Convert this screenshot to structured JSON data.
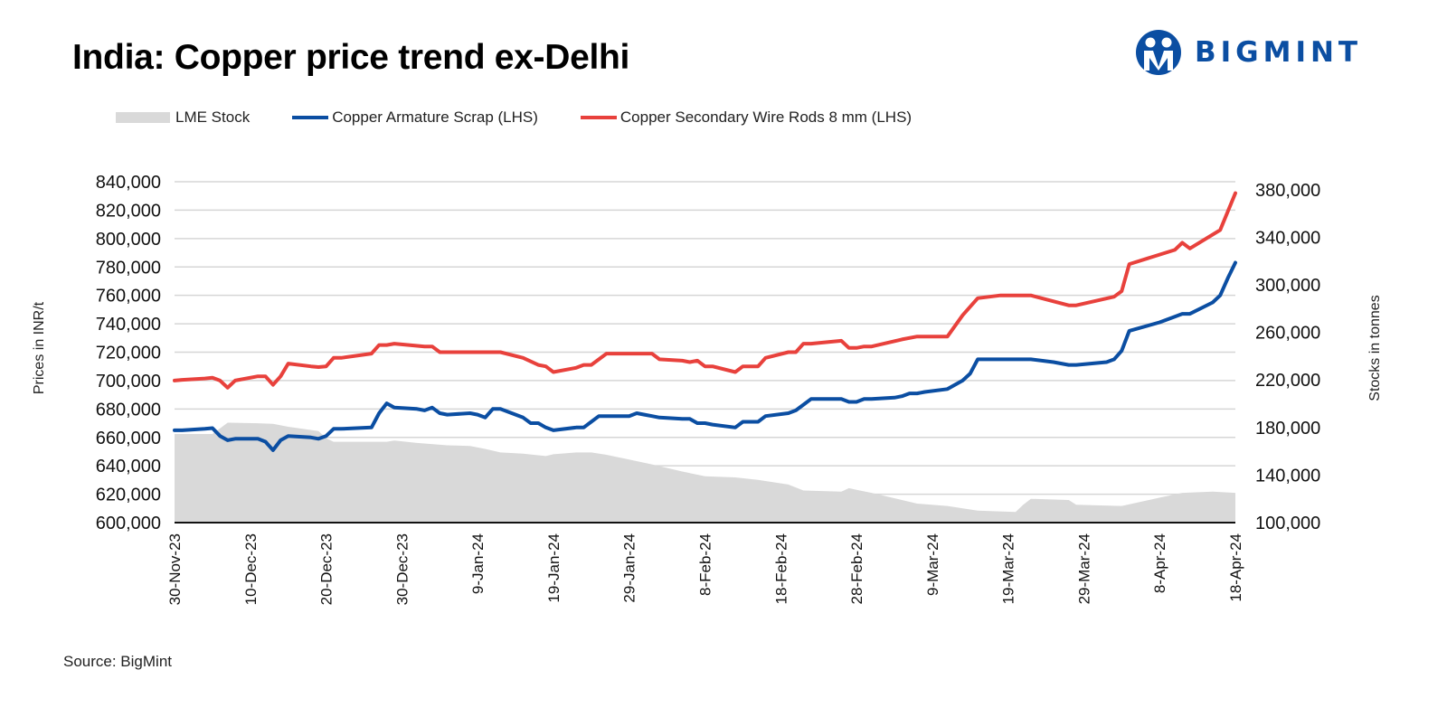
{
  "header": {
    "title": "India: Copper price trend ex-Delhi",
    "logo_text": "BIGMINT"
  },
  "footer": {
    "source": "Source: BigMint"
  },
  "colors": {
    "lme": "#d9d9d9",
    "armature": "#0b4ea2",
    "wire_rods": "#e8413c",
    "brand": "#0b4ea2"
  },
  "chart_data": {
    "type": "line",
    "title": "India: Copper price trend ex-Delhi",
    "ylabel": "Prices in INR/t",
    "y2label": "Stocks in tonnes",
    "ylim": [
      600000,
      840000
    ],
    "y2lim": [
      100000,
      386667
    ],
    "grid": true,
    "legend": "top-left",
    "yticks": [
      "600,000",
      "620,000",
      "640,000",
      "660,000",
      "680,000",
      "700,000",
      "720,000",
      "740,000",
      "760,000",
      "780,000",
      "800,000",
      "820,000",
      "840,000"
    ],
    "y2ticks": [
      "100,000",
      "140,000",
      "180,000",
      "220,000",
      "260,000",
      "300,000",
      "340,000",
      "380,000"
    ],
    "xticks": [
      "30-Nov-23",
      "10-Dec-23",
      "20-Dec-23",
      "30-Dec-23",
      "9-Jan-24",
      "19-Jan-24",
      "29-Jan-24",
      "8-Feb-24",
      "18-Feb-24",
      "28-Feb-24",
      "9-Mar-24",
      "19-Mar-24",
      "29-Mar-24",
      "8-Apr-24",
      "18-Apr-24"
    ],
    "series": [
      {
        "name": "LME Stock",
        "type": "area",
        "axis": "right",
        "points": [
          [
            "30-Nov-23",
            174500
          ],
          [
            "5-Dec-23",
            174500
          ],
          [
            "7-Dec-23",
            184000
          ],
          [
            "11-Dec-23",
            183600
          ],
          [
            "13-Dec-23",
            183000
          ],
          [
            "15-Dec-23",
            180600
          ],
          [
            "19-Dec-23",
            177000
          ],
          [
            "20-Dec-23",
            171000
          ],
          [
            "21-Dec-23",
            168000
          ],
          [
            "28-Dec-23",
            168000
          ],
          [
            "29-Dec-23",
            169000
          ],
          [
            "1-Jan-24",
            167000
          ],
          [
            "5-Jan-24",
            165000
          ],
          [
            "8-Jan-24",
            164500
          ],
          [
            "10-Jan-24",
            162000
          ],
          [
            "12-Jan-24",
            159000
          ],
          [
            "15-Jan-24",
            158000
          ],
          [
            "18-Jan-24",
            156000
          ],
          [
            "19-Jan-24",
            157500
          ],
          [
            "22-Jan-24",
            159000
          ],
          [
            "24-Jan-24",
            159000
          ],
          [
            "26-Jan-24",
            157000
          ],
          [
            "29-Jan-24",
            153000
          ],
          [
            "1-Feb-24",
            149000
          ],
          [
            "5-Feb-24",
            143000
          ],
          [
            "8-Feb-24",
            139000
          ],
          [
            "12-Feb-24",
            138000
          ],
          [
            "15-Feb-24",
            136000
          ],
          [
            "19-Feb-24",
            132000
          ],
          [
            "21-Feb-24",
            127000
          ],
          [
            "26-Feb-24",
            126000
          ],
          [
            "27-Feb-24",
            129000
          ],
          [
            "28-Feb-24",
            127500
          ],
          [
            "1-Mar-24",
            125000
          ],
          [
            "5-Mar-24",
            119000
          ],
          [
            "7-Mar-24",
            116000
          ],
          [
            "11-Mar-24",
            114000
          ],
          [
            "14-Mar-24",
            111000
          ],
          [
            "15-Mar-24",
            110000
          ],
          [
            "20-Mar-24",
            109000
          ],
          [
            "21-Mar-24",
            115000
          ],
          [
            "22-Mar-24",
            120000
          ],
          [
            "27-Mar-24",
            119000
          ],
          [
            "28-Mar-24",
            115000
          ],
          [
            "3-Apr-24",
            114000
          ],
          [
            "8-Apr-24",
            121000
          ],
          [
            "11-Apr-24",
            125000
          ],
          [
            "15-Apr-24",
            126000
          ],
          [
            "18-Apr-24",
            125000
          ]
        ]
      },
      {
        "name": "Copper Armature Scrap (LHS)",
        "type": "line",
        "axis": "left",
        "points": [
          [
            "30-Nov-23",
            665000
          ],
          [
            "1-Dec-23",
            665000
          ],
          [
            "4-Dec-23",
            666000
          ],
          [
            "5-Dec-23",
            666500
          ],
          [
            "6-Dec-23",
            661000
          ],
          [
            "7-Dec-23",
            658000
          ],
          [
            "8-Dec-23",
            659000
          ],
          [
            "11-Dec-23",
            659000
          ],
          [
            "12-Dec-23",
            657000
          ],
          [
            "13-Dec-23",
            651000
          ],
          [
            "14-Dec-23",
            658000
          ],
          [
            "15-Dec-23",
            661000
          ],
          [
            "18-Dec-23",
            660000
          ],
          [
            "19-Dec-23",
            659000
          ],
          [
            "20-Dec-23",
            661000
          ],
          [
            "21-Dec-23",
            666000
          ],
          [
            "22-Dec-23",
            666000
          ],
          [
            "26-Dec-23",
            667000
          ],
          [
            "27-Dec-23",
            677000
          ],
          [
            "28-Dec-23",
            684000
          ],
          [
            "29-Dec-23",
            681000
          ],
          [
            "1-Jan-24",
            680000
          ],
          [
            "2-Jan-24",
            679000
          ],
          [
            "3-Jan-24",
            681000
          ],
          [
            "4-Jan-24",
            677000
          ],
          [
            "5-Jan-24",
            676000
          ],
          [
            "8-Jan-24",
            677000
          ],
          [
            "9-Jan-24",
            676000
          ],
          [
            "10-Jan-24",
            674000
          ],
          [
            "11-Jan-24",
            680000
          ],
          [
            "12-Jan-24",
            680000
          ],
          [
            "15-Jan-24",
            674000
          ],
          [
            "16-Jan-24",
            670000
          ],
          [
            "17-Jan-24",
            670000
          ],
          [
            "18-Jan-24",
            667000
          ],
          [
            "19-Jan-24",
            665000
          ],
          [
            "22-Jan-24",
            667000
          ],
          [
            "23-Jan-24",
            667000
          ],
          [
            "24-Jan-24",
            671000
          ],
          [
            "25-Jan-24",
            675000
          ],
          [
            "26-Jan-24",
            675000
          ],
          [
            "29-Jan-24",
            675000
          ],
          [
            "30-Jan-24",
            677000
          ],
          [
            "31-Jan-24",
            676000
          ],
          [
            "1-Feb-24",
            675000
          ],
          [
            "2-Feb-24",
            674000
          ],
          [
            "5-Feb-24",
            673000
          ],
          [
            "6-Feb-24",
            673000
          ],
          [
            "7-Feb-24",
            670000
          ],
          [
            "8-Feb-24",
            670000
          ],
          [
            "9-Feb-24",
            669000
          ],
          [
            "12-Feb-24",
            667000
          ],
          [
            "13-Feb-24",
            671000
          ],
          [
            "15-Feb-24",
            671000
          ],
          [
            "16-Feb-24",
            675000
          ],
          [
            "19-Feb-24",
            677000
          ],
          [
            "20-Feb-24",
            679000
          ],
          [
            "21-Feb-24",
            683000
          ],
          [
            "22-Feb-24",
            687000
          ],
          [
            "26-Feb-24",
            687000
          ],
          [
            "27-Feb-24",
            685000
          ],
          [
            "28-Feb-24",
            685000
          ],
          [
            "29-Feb-24",
            687000
          ],
          [
            "1-Mar-24",
            687000
          ],
          [
            "4-Mar-24",
            688000
          ],
          [
            "5-Mar-24",
            689000
          ],
          [
            "6-Mar-24",
            691000
          ],
          [
            "7-Mar-24",
            691000
          ],
          [
            "8-Mar-24",
            692000
          ],
          [
            "11-Mar-24",
            694000
          ],
          [
            "13-Mar-24",
            700000
          ],
          [
            "14-Mar-24",
            705000
          ],
          [
            "15-Mar-24",
            715000
          ],
          [
            "18-Mar-24",
            715000
          ],
          [
            "22-Mar-24",
            715000
          ],
          [
            "25-Mar-24",
            713000
          ],
          [
            "27-Mar-24",
            711000
          ],
          [
            "28-Mar-24",
            711000
          ],
          [
            "1-Apr-24",
            713000
          ],
          [
            "2-Apr-24",
            715000
          ],
          [
            "3-Apr-24",
            721000
          ],
          [
            "4-Apr-24",
            735000
          ],
          [
            "8-Apr-24",
            741000
          ],
          [
            "10-Apr-24",
            745000
          ],
          [
            "11-Apr-24",
            747000
          ],
          [
            "12-Apr-24",
            747000
          ],
          [
            "15-Apr-24",
            755000
          ],
          [
            "16-Apr-24",
            760000
          ],
          [
            "17-Apr-24",
            772000
          ],
          [
            "18-Apr-24",
            783000
          ]
        ]
      },
      {
        "name": "Copper Secondary Wire Rods 8 mm (LHS)",
        "type": "line",
        "axis": "left",
        "points": [
          [
            "30-Nov-23",
            700000
          ],
          [
            "1-Dec-23",
            700500
          ],
          [
            "4-Dec-23",
            701500
          ],
          [
            "5-Dec-23",
            702000
          ],
          [
            "6-Dec-23",
            700000
          ],
          [
            "7-Dec-23",
            695000
          ],
          [
            "8-Dec-23",
            700000
          ],
          [
            "11-Dec-23",
            703000
          ],
          [
            "12-Dec-23",
            703000
          ],
          [
            "13-Dec-23",
            697000
          ],
          [
            "14-Dec-23",
            703000
          ],
          [
            "15-Dec-23",
            712000
          ],
          [
            "18-Dec-23",
            710000
          ],
          [
            "19-Dec-23",
            709500
          ],
          [
            "20-Dec-23",
            710000
          ],
          [
            "21-Dec-23",
            716000
          ],
          [
            "22-Dec-23",
            716000
          ],
          [
            "26-Dec-23",
            719000
          ],
          [
            "27-Dec-23",
            725000
          ],
          [
            "28-Dec-23",
            725000
          ],
          [
            "29-Dec-23",
            726000
          ],
          [
            "2-Jan-24",
            724000
          ],
          [
            "3-Jan-24",
            724000
          ],
          [
            "4-Jan-24",
            720000
          ],
          [
            "12-Jan-24",
            720000
          ],
          [
            "15-Jan-24",
            716000
          ],
          [
            "17-Jan-24",
            711000
          ],
          [
            "18-Jan-24",
            710000
          ],
          [
            "19-Jan-24",
            706000
          ],
          [
            "22-Jan-24",
            709000
          ],
          [
            "23-Jan-24",
            711000
          ],
          [
            "24-Jan-24",
            711000
          ],
          [
            "26-Jan-24",
            719000
          ],
          [
            "29-Jan-24",
            719000
          ],
          [
            "1-Feb-24",
            719000
          ],
          [
            "2-Feb-24",
            715000
          ],
          [
            "5-Feb-24",
            714000
          ],
          [
            "6-Feb-24",
            713000
          ],
          [
            "7-Feb-24",
            714000
          ],
          [
            "8-Feb-24",
            710000
          ],
          [
            "9-Feb-24",
            710000
          ],
          [
            "12-Feb-24",
            706000
          ],
          [
            "13-Feb-24",
            710000
          ],
          [
            "15-Feb-24",
            710000
          ],
          [
            "16-Feb-24",
            716000
          ],
          [
            "19-Feb-24",
            720000
          ],
          [
            "20-Feb-24",
            720000
          ],
          [
            "21-Feb-24",
            726000
          ],
          [
            "22-Feb-24",
            726000
          ],
          [
            "26-Feb-24",
            728000
          ],
          [
            "27-Feb-24",
            723000
          ],
          [
            "28-Feb-24",
            723000
          ],
          [
            "29-Feb-24",
            724000
          ],
          [
            "1-Mar-24",
            724000
          ],
          [
            "5-Mar-24",
            729000
          ],
          [
            "7-Mar-24",
            731000
          ],
          [
            "11-Mar-24",
            731000
          ],
          [
            "13-Mar-24",
            746000
          ],
          [
            "15-Mar-24",
            758000
          ],
          [
            "18-Mar-24",
            760000
          ],
          [
            "22-Mar-24",
            760000
          ],
          [
            "27-Mar-24",
            753000
          ],
          [
            "28-Mar-24",
            753000
          ],
          [
            "2-Apr-24",
            759000
          ],
          [
            "3-Apr-24",
            763000
          ],
          [
            "4-Apr-24",
            782000
          ],
          [
            "10-Apr-24",
            792000
          ],
          [
            "11-Apr-24",
            797000
          ],
          [
            "12-Apr-24",
            793000
          ],
          [
            "16-Apr-24",
            806000
          ],
          [
            "17-Apr-24",
            819000
          ],
          [
            "18-Apr-24",
            832000
          ]
        ]
      }
    ]
  }
}
